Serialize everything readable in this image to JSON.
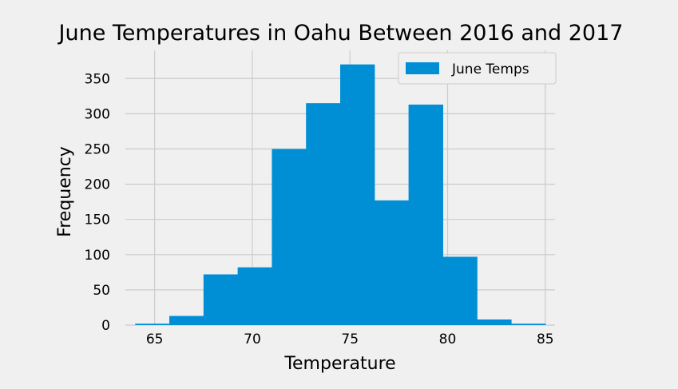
{
  "chart_data": {
    "type": "bar",
    "title": "June Temperatures in Oahu Between 2016 and 2017",
    "xlabel": "Temperature",
    "ylabel": "Frequency",
    "xlim": [
      63.5,
      85.5
    ],
    "ylim": [
      0,
      390
    ],
    "xticks": [
      65,
      70,
      75,
      80,
      85
    ],
    "yticks": [
      0,
      50,
      100,
      150,
      200,
      250,
      300,
      350
    ],
    "grid": true,
    "legend_position": "top-right",
    "bin_edges": [
      64.0,
      65.75,
      67.5,
      69.25,
      71.0,
      72.75,
      74.5,
      76.25,
      78.0,
      79.75,
      81.5,
      83.25,
      85.0
    ],
    "series": [
      {
        "name": "June Temps",
        "color": "#008fd5",
        "values": [
          2,
          13,
          72,
          82,
          250,
          315,
          370,
          177,
          313,
          97,
          8,
          2
        ]
      }
    ]
  }
}
